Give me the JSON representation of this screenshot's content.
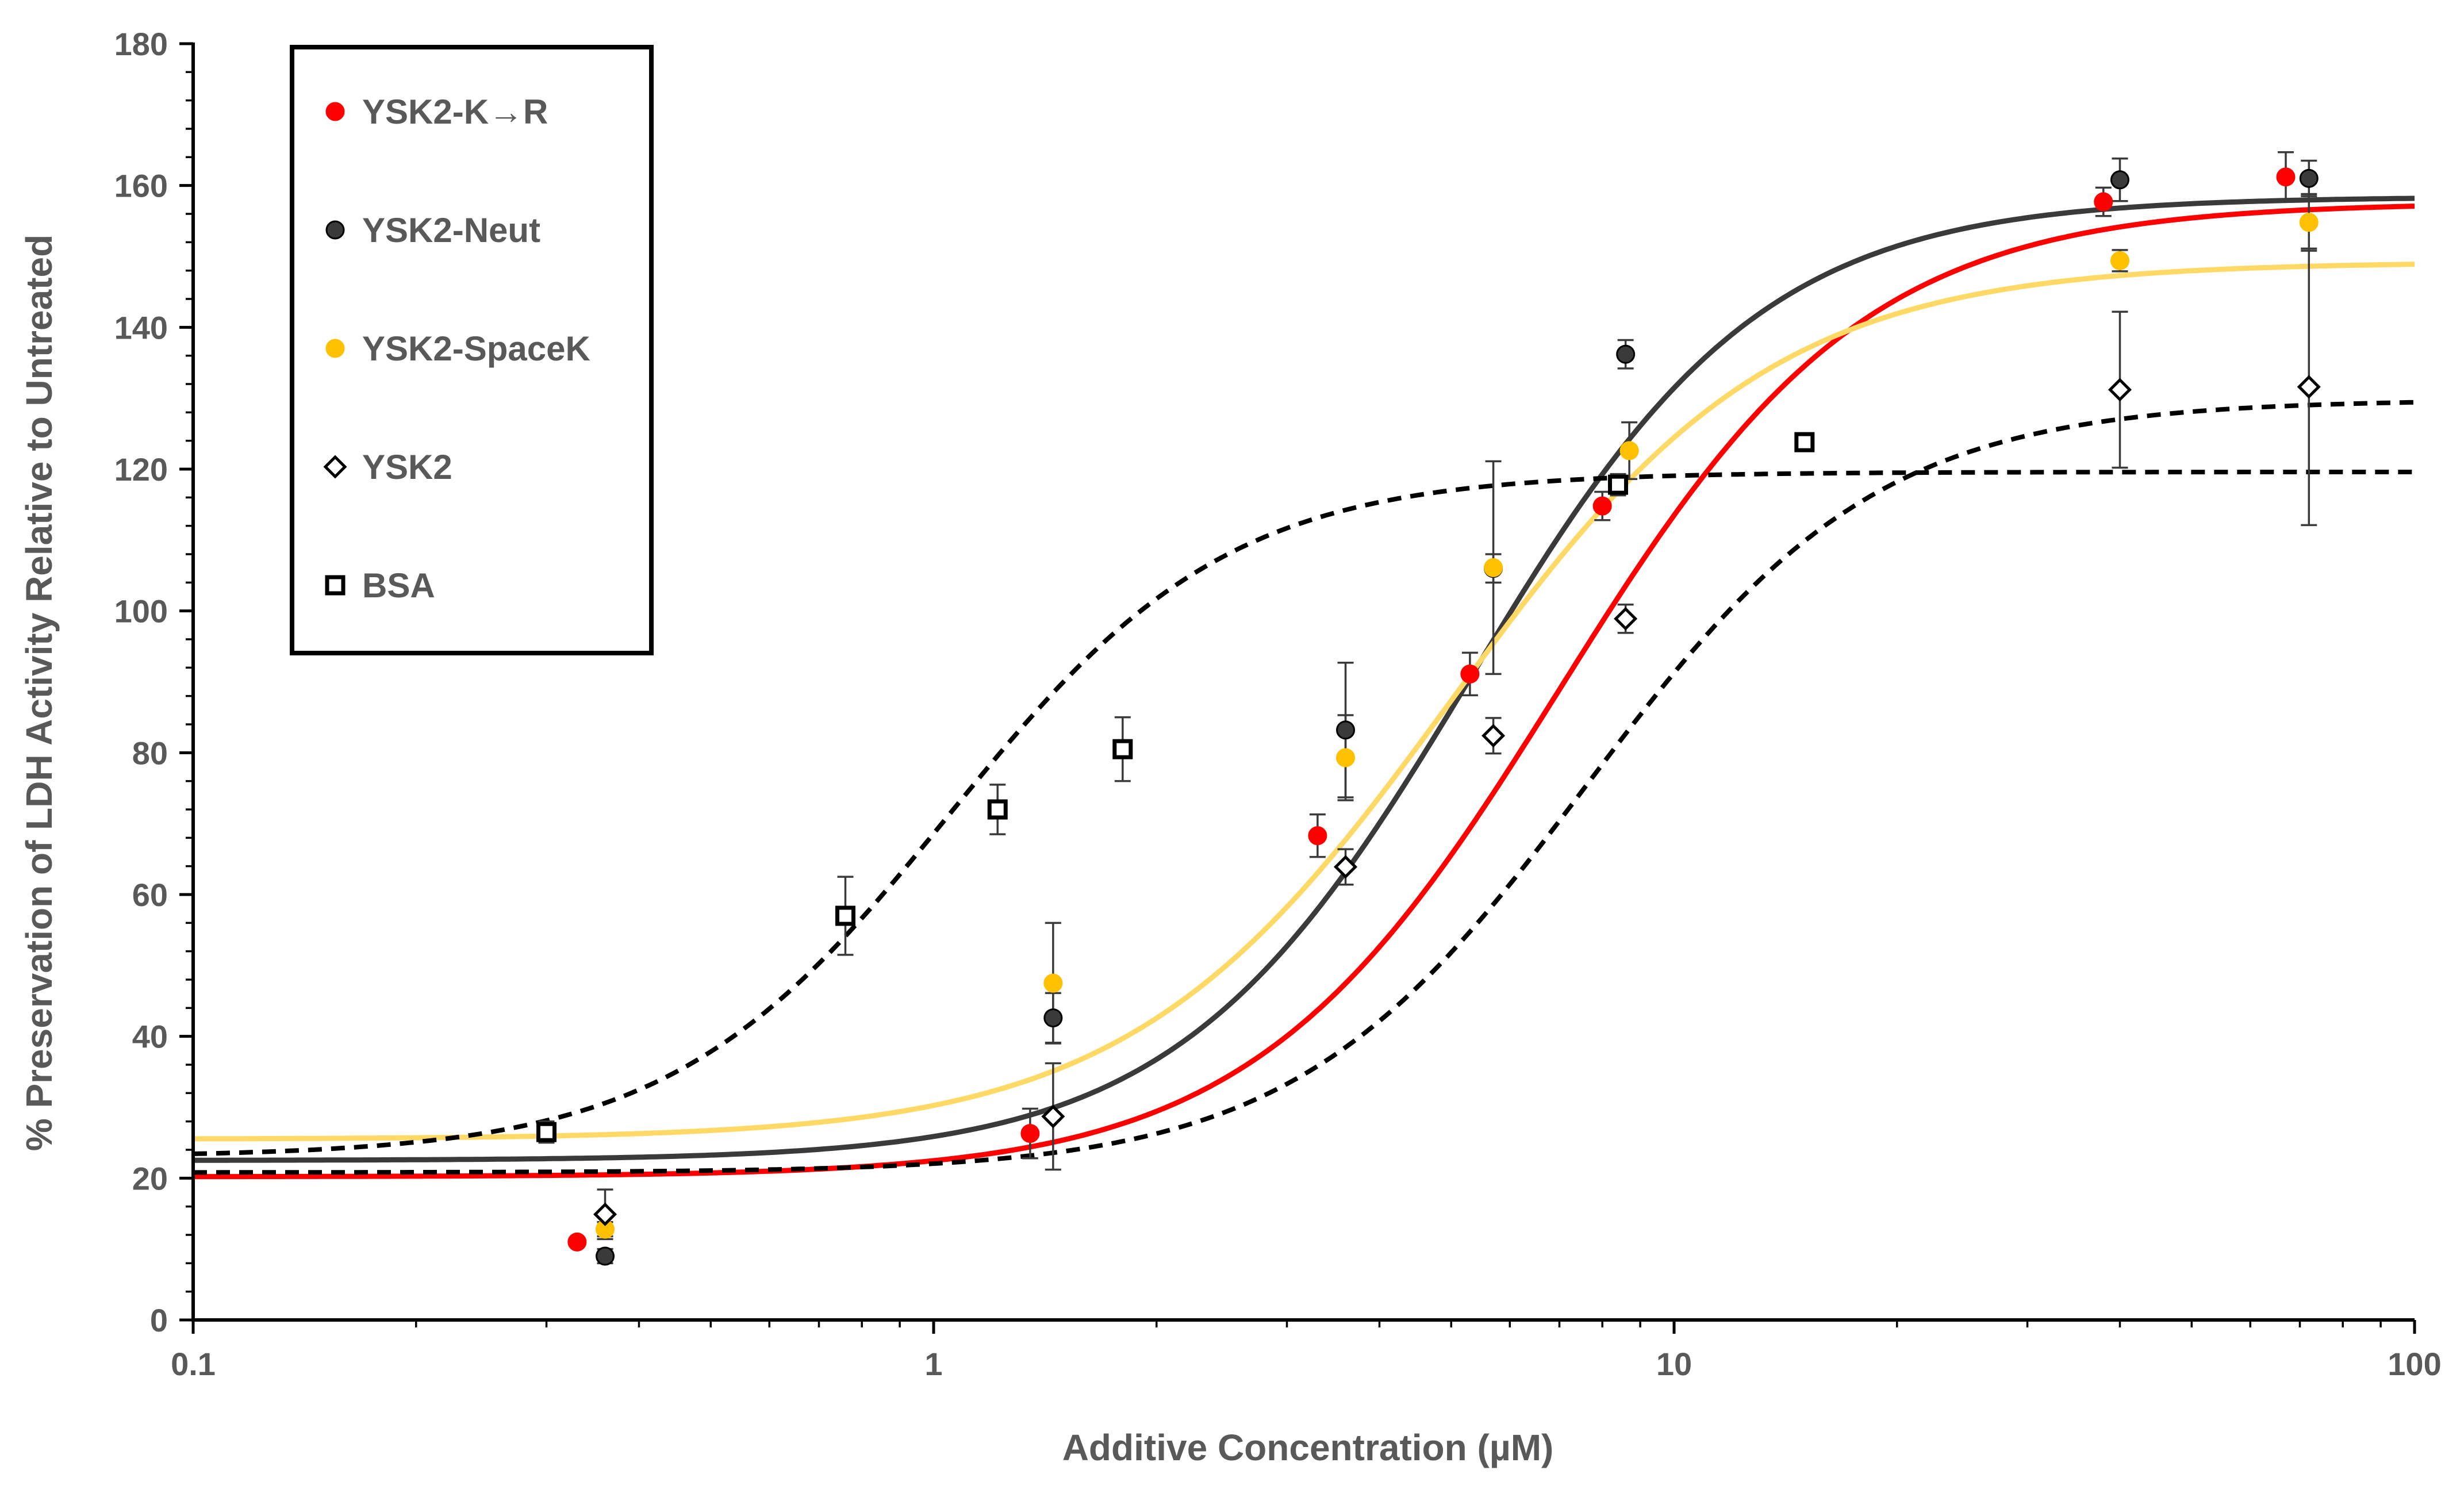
{
  "chart_data": {
    "type": "scatter",
    "title": "",
    "xlabel": "Additive Concentration (µM)",
    "ylabel": "%  Preservation of LDH Activity Relative to Untreated",
    "x_scale": "log",
    "xlim": [
      0.1,
      100
    ],
    "ylim": [
      0,
      180
    ],
    "x_ticks": [
      0.1,
      1,
      10,
      100
    ],
    "x_tick_labels": [
      "0.1",
      "1",
      "10",
      "100"
    ],
    "y_ticks": [
      0,
      20,
      40,
      60,
      80,
      100,
      120,
      140,
      160,
      180
    ],
    "y_tick_labels": [
      "0",
      "20",
      "40",
      "60",
      "80",
      "100",
      "120",
      "140",
      "160",
      "180"
    ],
    "grid": false,
    "legend_position": "top-left",
    "series": [
      {
        "name": "YSK2-K→R",
        "marker": "filled-circle",
        "color": "#ff0000",
        "x": [
          0.33,
          1.35,
          3.3,
          5.3,
          8.0,
          38,
          67
        ],
        "y": [
          11.0,
          26.3,
          68.3,
          91.1,
          114.8,
          157.7,
          161.2
        ],
        "error": [
          0.5,
          3.5,
          3.0,
          3.0,
          2.0,
          2.0,
          3.5
        ],
        "fit": {
          "type": "sigmoid",
          "bottom": 20.2,
          "top": 157.6,
          "x_mid": 7.0,
          "slope": 2.1
        },
        "fit_color": "#ff0000",
        "fit_dash": false
      },
      {
        "name": "YSK2-Neut",
        "marker": "filled-circle",
        "color": "#3a3a3a",
        "x": [
          0.36,
          1.45,
          3.6,
          5.7,
          8.6,
          40,
          72
        ],
        "y": [
          9.0,
          42.6,
          83.2,
          106.0,
          136.2,
          160.8,
          161.0
        ],
        "error": [
          1.0,
          3.5,
          9.5,
          2.0,
          2.0,
          3.0,
          2.5
        ],
        "fit": {
          "type": "sigmoid",
          "bottom": 22.5,
          "top": 158.4,
          "x_mid": 5.3,
          "slope": 2.2
        },
        "fit_color": "#3a3a3a",
        "fit_dash": false
      },
      {
        "name": "YSK2-SpaceK",
        "marker": "filled-circle",
        "color": "#ffc000",
        "x": [
          0.36,
          1.45,
          3.6,
          5.7,
          8.7,
          40,
          72
        ],
        "y": [
          12.8,
          47.5,
          79.3,
          106.1,
          122.6,
          149.4,
          154.8
        ],
        "error": [
          1.0,
          8.5,
          6.0,
          15.0,
          4.0,
          1.5,
          4.0
        ],
        "fit": {
          "type": "sigmoid",
          "bottom": 25.5,
          "top": 149.2,
          "x_mid": 5.0,
          "slope": 2.0
        },
        "fit_color": "#ffd966",
        "fit_dash": false
      },
      {
        "name": "YSK2",
        "marker": "open-diamond",
        "color": "#000000",
        "x": [
          0.36,
          1.45,
          3.6,
          5.7,
          8.6,
          40,
          72
        ],
        "y": [
          14.9,
          28.7,
          63.9,
          82.4,
          98.9,
          131.2,
          131.6
        ],
        "error": [
          3.5,
          7.5,
          2.5,
          2.5,
          2.0,
          11.0,
          19.5
        ],
        "fit": {
          "type": "sigmoid",
          "bottom": 20.8,
          "top": 129.8,
          "x_mid": 7.6,
          "slope": 2.2
        },
        "fit_color": "#000000",
        "fit_dash": true
      },
      {
        "name": "BSA",
        "marker": "open-square",
        "color": "#000000",
        "x": [
          0.3,
          0.76,
          1.22,
          1.8,
          8.4,
          15
        ],
        "y": [
          26.5,
          57.0,
          72.0,
          80.5,
          117.8,
          123.8
        ],
        "error": [
          1.5,
          5.5,
          3.5,
          4.5,
          1.5,
          1.0
        ],
        "fit": {
          "type": "sigmoid",
          "bottom": 23.0,
          "top": 119.6,
          "x_mid": 1.05,
          "slope": 2.3
        },
        "fit_color": "#000000",
        "fit_dash": true
      }
    ]
  }
}
